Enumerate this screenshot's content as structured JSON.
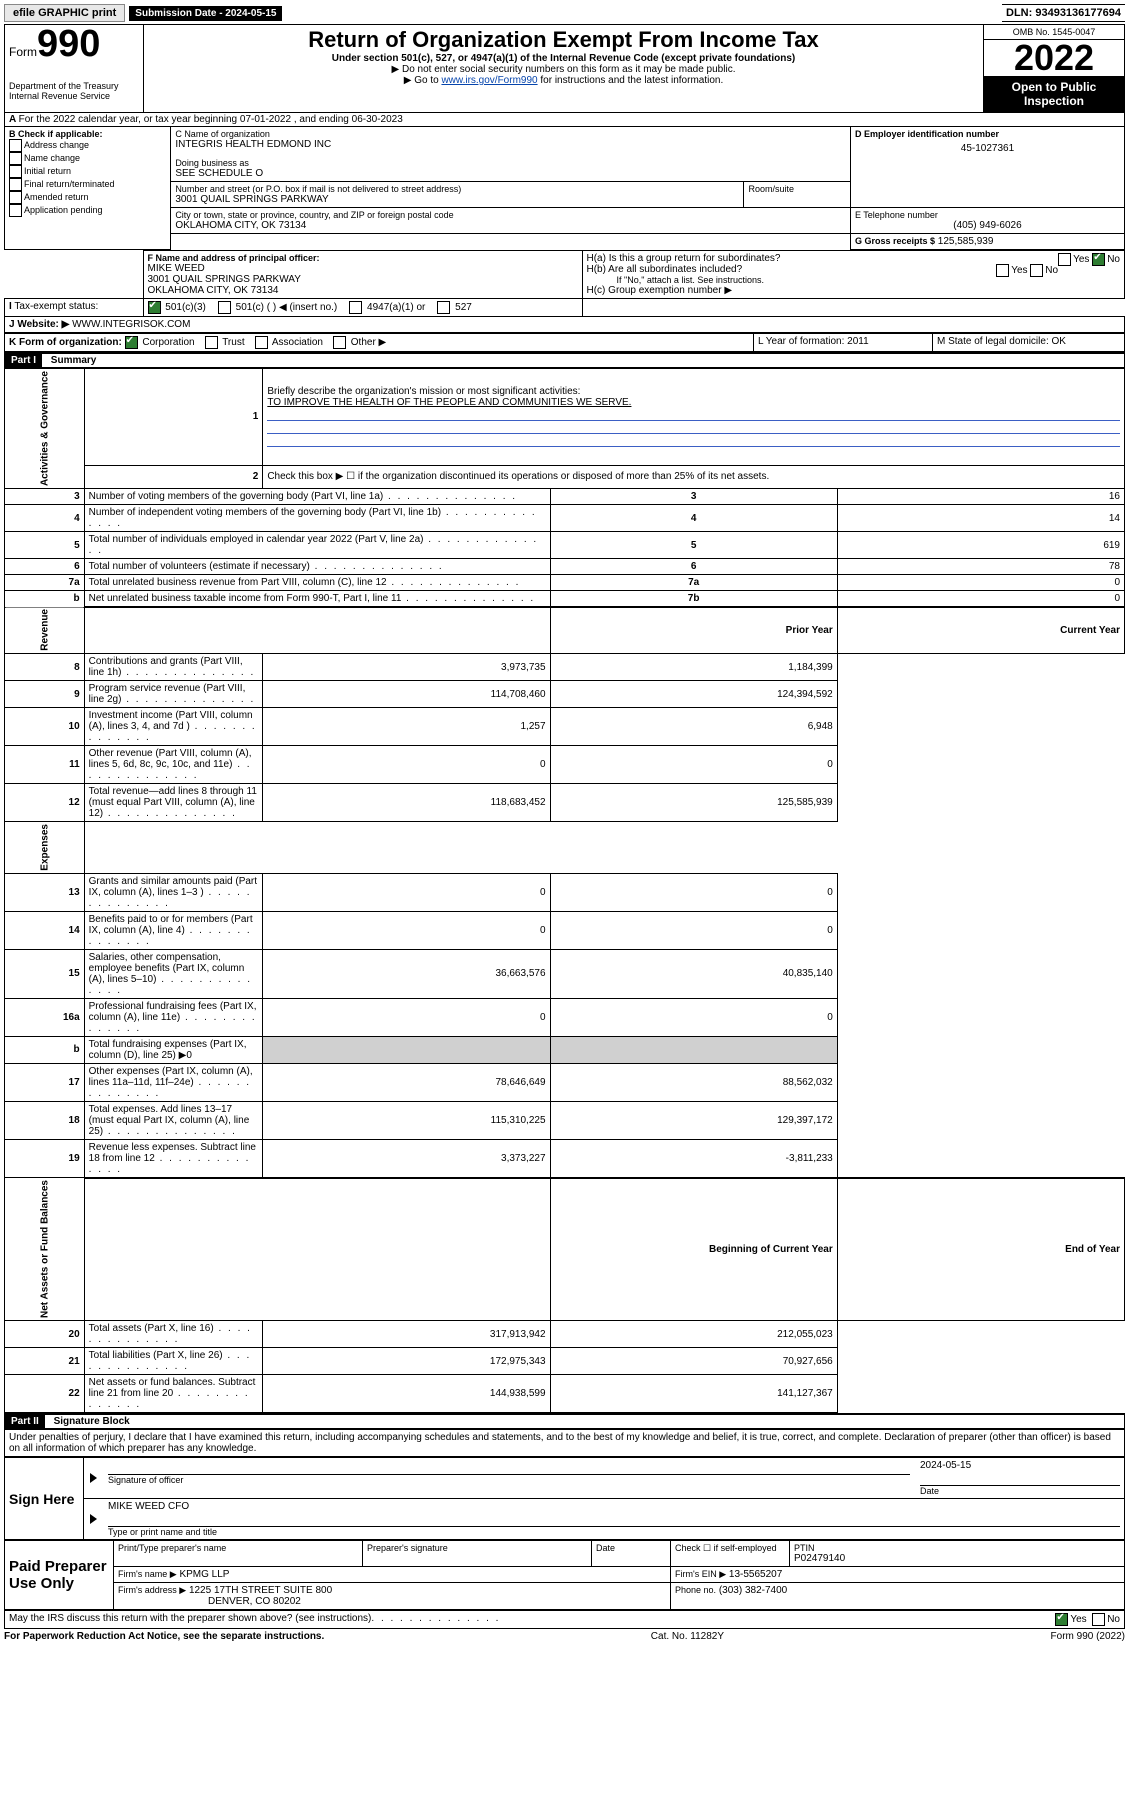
{
  "topbar": {
    "efile": "efile GRAPHIC print",
    "submission_label": "Submission Date - 2024-05-15",
    "dln": "DLN: 93493136177694"
  },
  "header": {
    "form_word": "Form",
    "form_num": "990",
    "title": "Return of Organization Exempt From Income Tax",
    "subtitle": "Under section 501(c), 527, or 4947(a)(1) of the Internal Revenue Code (except private foundations)",
    "instr1": "▶ Do not enter social security numbers on this form as it may be made public.",
    "instr2_pre": "▶ Go to ",
    "instr2_link": "www.irs.gov/Form990",
    "instr2_post": " for instructions and the latest information.",
    "dept": "Department of the Treasury\nInternal Revenue Service",
    "omb": "OMB No. 1545-0047",
    "year": "2022",
    "open": "Open to Public Inspection"
  },
  "A": {
    "text": "For the 2022 calendar year, or tax year beginning 07-01-2022    , and ending 06-30-2023"
  },
  "B": {
    "label": "B Check if applicable:",
    "items": [
      "Address change",
      "Name change",
      "Initial return",
      "Final return/terminated",
      "Amended return",
      "Application pending"
    ]
  },
  "C": {
    "label": "C Name of organization",
    "name": "INTEGRIS HEALTH EDMOND INC",
    "dba_label": "Doing business as",
    "dba": "SEE SCHEDULE O",
    "street_label": "Number and street (or P.O. box if mail is not delivered to street address)",
    "room_label": "Room/suite",
    "street": "3001 QUAIL SPRINGS PARKWAY",
    "city_label": "City or town, state or province, country, and ZIP or foreign postal code",
    "city": "OKLAHOMA CITY, OK  73134"
  },
  "D": {
    "label": "D Employer identification number",
    "val": "45-1027361"
  },
  "E": {
    "label": "E Telephone number",
    "val": "(405) 949-6026"
  },
  "G": {
    "label": "G Gross receipts $",
    "val": "125,585,939"
  },
  "F": {
    "label": "F  Name and address of principal officer:",
    "name": "MIKE WEED",
    "addr1": "3001 QUAIL SPRINGS PARKWAY",
    "addr2": "OKLAHOMA CITY, OK  73134"
  },
  "H": {
    "a": "H(a)  Is this a group return for subordinates?",
    "b": "H(b)  Are all subordinates included?",
    "note": "If \"No,\" attach a list. See instructions.",
    "c": "H(c)  Group exemption number ▶",
    "yes": "Yes",
    "no": "No"
  },
  "I": {
    "label": "Tax-exempt status:",
    "opts": [
      "501(c)(3)",
      "501(c) (   ) ◀ (insert no.)",
      "4947(a)(1) or",
      "527"
    ]
  },
  "J": {
    "label": "Website: ▶",
    "val": "WWW.INTEGRISOK.COM"
  },
  "K": {
    "label": "K Form of organization:",
    "opts": [
      "Corporation",
      "Trust",
      "Association",
      "Other ▶"
    ]
  },
  "L": {
    "label": "L Year of formation: 2011"
  },
  "M": {
    "label": "M State of legal domicile: OK"
  },
  "part1": {
    "label": "Part I",
    "title": "Summary",
    "l1": "Briefly describe the organization's mission or most significant activities:",
    "mission": "TO IMPROVE THE HEALTH OF THE PEOPLE AND COMMUNITIES WE SERVE.",
    "l2": "Check this box ▶ ☐  if the organization discontinued its operations or disposed of more than 25% of its net assets.",
    "rows_gov": [
      {
        "n": "3",
        "t": "Number of voting members of the governing body (Part VI, line 1a)",
        "box": "3",
        "v": "16"
      },
      {
        "n": "4",
        "t": "Number of independent voting members of the governing body (Part VI, line 1b)",
        "box": "4",
        "v": "14"
      },
      {
        "n": "5",
        "t": "Total number of individuals employed in calendar year 2022 (Part V, line 2a)",
        "box": "5",
        "v": "619"
      },
      {
        "n": "6",
        "t": "Total number of volunteers (estimate if necessary)",
        "box": "6",
        "v": "78"
      },
      {
        "n": "7a",
        "t": "Total unrelated business revenue from Part VIII, column (C), line 12",
        "box": "7a",
        "v": "0"
      },
      {
        "n": "b",
        "t": "Net unrelated business taxable income from Form 990-T, Part I, line 11",
        "box": "7b",
        "v": "0"
      }
    ],
    "hdr_prior": "Prior Year",
    "hdr_curr": "Current Year",
    "rows_rev": [
      {
        "n": "8",
        "t": "Contributions and grants (Part VIII, line 1h)",
        "p": "3,973,735",
        "c": "1,184,399"
      },
      {
        "n": "9",
        "t": "Program service revenue (Part VIII, line 2g)",
        "p": "114,708,460",
        "c": "124,394,592"
      },
      {
        "n": "10",
        "t": "Investment income (Part VIII, column (A), lines 3, 4, and 7d )",
        "p": "1,257",
        "c": "6,948"
      },
      {
        "n": "11",
        "t": "Other revenue (Part VIII, column (A), lines 5, 6d, 8c, 9c, 10c, and 11e)",
        "p": "0",
        "c": "0"
      },
      {
        "n": "12",
        "t": "Total revenue—add lines 8 through 11 (must equal Part VIII, column (A), line 12)",
        "p": "118,683,452",
        "c": "125,585,939"
      }
    ],
    "rows_exp": [
      {
        "n": "13",
        "t": "Grants and similar amounts paid (Part IX, column (A), lines 1–3 )",
        "p": "0",
        "c": "0"
      },
      {
        "n": "14",
        "t": "Benefits paid to or for members (Part IX, column (A), line 4)",
        "p": "0",
        "c": "0"
      },
      {
        "n": "15",
        "t": "Salaries, other compensation, employee benefits (Part IX, column (A), lines 5–10)",
        "p": "36,663,576",
        "c": "40,835,140"
      },
      {
        "n": "16a",
        "t": "Professional fundraising fees (Part IX, column (A), line 11e)",
        "p": "0",
        "c": "0"
      },
      {
        "n": "b",
        "t": "Total fundraising expenses (Part IX, column (D), line 25) ▶0",
        "p": "",
        "c": "",
        "shaded": true
      },
      {
        "n": "17",
        "t": "Other expenses (Part IX, column (A), lines 11a–11d, 11f–24e)",
        "p": "78,646,649",
        "c": "88,562,032"
      },
      {
        "n": "18",
        "t": "Total expenses. Add lines 13–17 (must equal Part IX, column (A), line 25)",
        "p": "115,310,225",
        "c": "129,397,172"
      },
      {
        "n": "19",
        "t": "Revenue less expenses. Subtract line 18 from line 12",
        "p": "3,373,227",
        "c": "-3,811,233"
      }
    ],
    "hdr_boy": "Beginning of Current Year",
    "hdr_eoy": "End of Year",
    "rows_na": [
      {
        "n": "20",
        "t": "Total assets (Part X, line 16)",
        "p": "317,913,942",
        "c": "212,055,023"
      },
      {
        "n": "21",
        "t": "Total liabilities (Part X, line 26)",
        "p": "172,975,343",
        "c": "70,927,656"
      },
      {
        "n": "22",
        "t": "Net assets or fund balances. Subtract line 21 from line 20",
        "p": "144,938,599",
        "c": "141,127,367"
      }
    ],
    "side": {
      "gov": "Activities & Governance",
      "rev": "Revenue",
      "exp": "Expenses",
      "na": "Net Assets or\nFund Balances"
    }
  },
  "part2": {
    "label": "Part II",
    "title": "Signature Block",
    "decl": "Under penalties of perjury, I declare that I have examined this return, including accompanying schedules and statements, and to the best of my knowledge and belief, it is true, correct, and complete. Declaration of preparer (other than officer) is based on all information of which preparer has any knowledge.",
    "sign_here": "Sign Here",
    "sig_officer": "Signature of officer",
    "sig_date": "2024-05-15",
    "date_label": "Date",
    "officer_name": "MIKE WEED CFO",
    "officer_sub": "Type or print name and title",
    "paid": "Paid Preparer Use Only",
    "cols": {
      "c1": "Print/Type preparer's name",
      "c2": "Preparer's signature",
      "c3": "Date",
      "c4_check": "Check ☐ if self-employed",
      "c5": "PTIN",
      "ptin": "P02479140"
    },
    "firm_name_label": "Firm's name   ▶",
    "firm_name": "KPMG LLP",
    "firm_ein_label": "Firm's EIN ▶",
    "firm_ein": "13-5565207",
    "firm_addr_label": "Firm's address ▶",
    "firm_addr1": "1225 17TH STREET SUITE 800",
    "firm_addr2": "DENVER, CO  80202",
    "phone_label": "Phone no.",
    "phone": "(303) 382-7400",
    "discuss": "May the IRS discuss this return with the preparer shown above? (see instructions)",
    "footer_l": "For Paperwork Reduction Act Notice, see the separate instructions.",
    "footer_c": "Cat. No. 11282Y",
    "footer_r": "Form 990 (2022)"
  }
}
